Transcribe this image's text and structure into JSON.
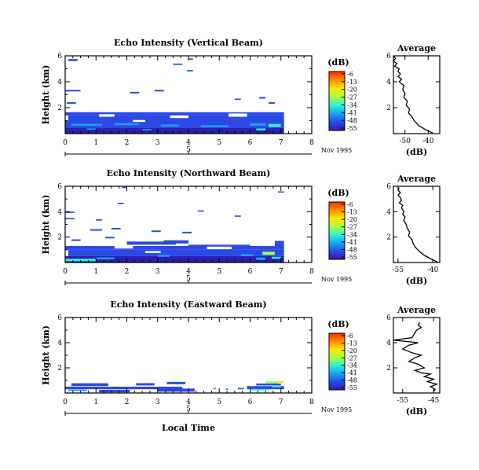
{
  "figure": {
    "date_label": "Nov 1995",
    "xlabel": "Local Time",
    "colorbar_title": "(dB)",
    "colorbar_ticks": [
      "-6",
      "-13",
      "-20",
      "-27",
      "-34",
      "-41",
      "-48",
      "-55"
    ],
    "colorbar_colors": [
      "#ff2a00",
      "#ff8c00",
      "#ffe600",
      "#a8ff3c",
      "#2ef2d0",
      "#13a6f2",
      "#2b49e6",
      "#2a1fb0"
    ]
  },
  "chart_data": [
    {
      "type": "heatmap",
      "title": "Echo Intensity (Vertical Beam)",
      "ylabel": "Height (km)",
      "xlim": [
        0,
        8
      ],
      "ylim": [
        0,
        6
      ],
      "xticks": [
        "0",
        "1",
        "2",
        "3",
        "4",
        "5",
        "6",
        "7",
        "8"
      ],
      "yticks": [
        "2",
        "4",
        "6"
      ],
      "date_marker": "5",
      "cells": [
        [
          0.1,
          5.6,
          0.3,
          0.15,
          "#2b49e6"
        ],
        [
          3.5,
          5.3,
          0.3,
          0.1,
          "#2b49e6"
        ],
        [
          3.95,
          4.8,
          0.2,
          0.1,
          "#2b49e6"
        ],
        [
          4.0,
          5.7,
          0.15,
          0.1,
          "#2b49e6"
        ],
        [
          0.0,
          3.25,
          0.5,
          0.12,
          "#2b49e6"
        ],
        [
          0.05,
          2.3,
          0.3,
          0.12,
          "#2b49e6"
        ],
        [
          2.1,
          3.1,
          0.3,
          0.12,
          "#2b49e6"
        ],
        [
          2.9,
          3.25,
          0.3,
          0.12,
          "#2b49e6"
        ],
        [
          6.3,
          2.7,
          0.2,
          0.12,
          "#2b49e6"
        ],
        [
          6.6,
          2.3,
          0.2,
          0.12,
          "#2b49e6"
        ],
        [
          5.5,
          2.6,
          0.2,
          0.1,
          "#2b49e6"
        ],
        [
          0.0,
          1.4,
          7.1,
          0.25,
          "#2b49e6"
        ],
        [
          0.1,
          1.0,
          7.0,
          0.4,
          "#2b49e6"
        ],
        [
          0.0,
          0.45,
          7.1,
          0.55,
          "#2b49e6"
        ],
        [
          0.0,
          0.0,
          7.1,
          0.45,
          "#2a1fb0"
        ],
        [
          0.2,
          0.6,
          1.0,
          0.15,
          "#13a6f2"
        ],
        [
          1.6,
          0.65,
          0.8,
          0.15,
          "#13a6f2"
        ],
        [
          3.1,
          0.55,
          0.6,
          0.15,
          "#13a6f2"
        ],
        [
          4.4,
          0.5,
          0.9,
          0.15,
          "#13a6f2"
        ],
        [
          6.0,
          0.6,
          0.5,
          0.2,
          "#13a6f2"
        ],
        [
          6.6,
          0.5,
          0.4,
          0.25,
          "#2ef2d0"
        ],
        [
          6.2,
          0.25,
          0.3,
          0.15,
          "#2ef2d0"
        ],
        [
          0.7,
          0.3,
          0.3,
          0.1,
          "#13a6f2"
        ],
        [
          2.5,
          0.25,
          0.3,
          0.1,
          "#13a6f2"
        ],
        [
          1.1,
          1.3,
          0.5,
          0.2,
          "#ffffff"
        ],
        [
          3.4,
          1.2,
          0.6,
          0.2,
          "#ffffff"
        ],
        [
          5.3,
          1.3,
          0.6,
          0.25,
          "#ffffff"
        ],
        [
          2.2,
          0.9,
          0.4,
          0.15,
          "#ffffff"
        ]
      ],
      "average": {
        "title": "Average",
        "xlabel": "(dB)",
        "xlim": [
          -55,
          -35
        ],
        "xticks": [
          -50,
          -40
        ],
        "ylim": [
          0,
          6
        ],
        "yticks": [
          2,
          4,
          6
        ],
        "x": [
          -55,
          -54,
          -55,
          -53.5,
          -54.5,
          -52.5,
          -53,
          -52,
          -53,
          -51.5,
          -52.5,
          -50.5,
          -51,
          -50,
          -50.5,
          -49,
          -49.5,
          -48,
          -48.5,
          -47,
          -46,
          -45,
          -44,
          -42,
          -40,
          -38
        ],
        "y": [
          6,
          5.8,
          5.6,
          5.4,
          5.2,
          5.0,
          4.8,
          4.6,
          4.4,
          4.2,
          4.0,
          3.7,
          3.4,
          3.1,
          2.8,
          2.5,
          2.2,
          1.9,
          1.6,
          1.3,
          1.0,
          0.8,
          0.6,
          0.4,
          0.2,
          0.05
        ]
      }
    },
    {
      "type": "heatmap",
      "title": "Echo Intensity (Northward Beam)",
      "ylabel": "Height (km)",
      "xlim": [
        0,
        8
      ],
      "ylim": [
        0,
        6
      ],
      "xticks": [
        "0",
        "1",
        "2",
        "3",
        "4",
        "5",
        "6",
        "7",
        "8"
      ],
      "yticks": [
        "2",
        "4",
        "6"
      ],
      "date_marker": "5",
      "cells": [
        [
          1.85,
          5.85,
          0.15,
          0.1,
          "#2b49e6"
        ],
        [
          6.9,
          5.5,
          0.2,
          0.1,
          "#2b49e6"
        ],
        [
          1.7,
          4.6,
          0.2,
          0.1,
          "#2b49e6"
        ],
        [
          0.0,
          3.9,
          0.3,
          0.1,
          "#2b49e6"
        ],
        [
          4.3,
          4.0,
          0.2,
          0.1,
          "#2b49e6"
        ],
        [
          5.5,
          3.6,
          0.2,
          0.1,
          "#2b49e6"
        ],
        [
          0.0,
          3.4,
          0.3,
          0.1,
          "#2b49e6"
        ],
        [
          1.0,
          3.3,
          0.2,
          0.1,
          "#2b49e6"
        ],
        [
          0.8,
          2.5,
          0.4,
          0.12,
          "#2b49e6"
        ],
        [
          1.5,
          2.6,
          0.3,
          0.12,
          "#2b49e6"
        ],
        [
          2.8,
          2.4,
          0.3,
          0.12,
          "#2b49e6"
        ],
        [
          3.8,
          2.3,
          0.3,
          0.12,
          "#2b49e6"
        ],
        [
          0.2,
          1.7,
          0.3,
          0.12,
          "#2b49e6"
        ],
        [
          1.3,
          1.9,
          0.3,
          0.12,
          "#2b49e6"
        ],
        [
          2.0,
          1.4,
          1.6,
          0.25,
          "#2b49e6"
        ],
        [
          3.2,
          1.5,
          0.8,
          0.25,
          "#2b49e6"
        ],
        [
          6.8,
          1.3,
          0.3,
          0.4,
          "#2b49e6"
        ],
        [
          4.0,
          1.2,
          2.0,
          0.2,
          "#2b49e6"
        ],
        [
          0.0,
          1.0,
          7.1,
          0.3,
          "#2b49e6"
        ],
        [
          0.1,
          0.5,
          7.0,
          0.5,
          "#2b49e6"
        ],
        [
          0.0,
          0.0,
          7.1,
          0.5,
          "#2a1fb0"
        ],
        [
          0.0,
          0.1,
          1.0,
          0.2,
          "#2ef2d0"
        ],
        [
          1.0,
          0.25,
          0.6,
          0.15,
          "#13a6f2"
        ],
        [
          3.0,
          0.45,
          0.4,
          0.15,
          "#13a6f2"
        ],
        [
          6.4,
          0.6,
          0.4,
          0.25,
          "#a8ff3c"
        ],
        [
          6.2,
          0.2,
          0.3,
          0.2,
          "#13a6f2"
        ],
        [
          6.7,
          0.3,
          0.3,
          0.15,
          "#2ef2d0"
        ],
        [
          5.7,
          0.5,
          0.4,
          0.15,
          "#13a6f2"
        ],
        [
          1.6,
          1.1,
          0.6,
          0.2,
          "#ffffff"
        ],
        [
          4.6,
          1.05,
          0.8,
          0.2,
          "#ffffff"
        ],
        [
          2.6,
          0.75,
          0.5,
          0.15,
          "#ffffff"
        ]
      ],
      "average": {
        "title": "Average",
        "xlabel": "(dB)",
        "xlim": [
          -57,
          -37
        ],
        "xticks": [
          -55,
          -40
        ],
        "ylim": [
          0,
          6
        ],
        "yticks": [
          2,
          4,
          6
        ],
        "x": [
          -54.5,
          -55,
          -54,
          -55,
          -54,
          -53.5,
          -54.5,
          -53,
          -53.5,
          -52.5,
          -53,
          -52,
          -52.5,
          -51.5,
          -51,
          -50,
          -50.5,
          -49,
          -48.5,
          -47.5,
          -46,
          -44,
          -42,
          -40,
          -38
        ],
        "y": [
          5.9,
          5.7,
          5.5,
          5.3,
          5.1,
          4.9,
          4.7,
          4.5,
          4.3,
          4.0,
          3.8,
          3.6,
          3.3,
          3.0,
          2.7,
          2.4,
          2.1,
          1.8,
          1.5,
          1.2,
          0.9,
          0.6,
          0.4,
          0.2,
          0.05
        ]
      }
    },
    {
      "type": "heatmap",
      "title": "Echo Intensity (Eastward Beam)",
      "ylabel": "Height (km)",
      "xlim": [
        0,
        8
      ],
      "ylim": [
        0,
        6
      ],
      "xticks": [
        "0",
        "1",
        "2",
        "3",
        "4",
        "5",
        "6",
        "7",
        "8"
      ],
      "yticks": [
        "2",
        "4",
        "6"
      ],
      "date_marker": "5",
      "cells": [
        [
          0.2,
          0.55,
          1.2,
          0.22,
          "#2b49e6"
        ],
        [
          2.3,
          0.6,
          0.6,
          0.18,
          "#2b49e6"
        ],
        [
          3.3,
          0.7,
          0.6,
          0.18,
          "#2b49e6"
        ],
        [
          0.0,
          0.3,
          3.8,
          0.2,
          "#2b49e6"
        ],
        [
          1.1,
          0.05,
          1.0,
          0.2,
          "#2b49e6"
        ],
        [
          3.0,
          0.1,
          1.2,
          0.25,
          "#2b49e6"
        ],
        [
          0.1,
          0.15,
          0.6,
          0.12,
          "#13a6f2"
        ],
        [
          4.8,
          0.3,
          0.1,
          0.1,
          "#13a6f2"
        ],
        [
          5.2,
          0.25,
          0.1,
          0.1,
          "#13a6f2"
        ],
        [
          5.6,
          0.3,
          0.2,
          0.1,
          "#2b49e6"
        ],
        [
          5.9,
          0.3,
          1.2,
          0.25,
          "#2b49e6"
        ],
        [
          6.2,
          0.6,
          0.8,
          0.15,
          "#2b49e6"
        ],
        [
          6.5,
          0.75,
          0.4,
          0.18,
          "#a8ff3c"
        ],
        [
          6.9,
          0.8,
          0.2,
          0.15,
          "#ffe600"
        ],
        [
          6.0,
          0.2,
          0.6,
          0.12,
          "#2ef2d0"
        ],
        [
          6.7,
          0.45,
          0.3,
          0.12,
          "#2ef2d0"
        ]
      ],
      "average": {
        "title": "Average",
        "xlabel": "(dB)",
        "xlim": [
          -58,
          -43
        ],
        "xticks": [
          -55,
          -45
        ],
        "ylim": [
          0,
          6
        ],
        "yticks": [
          2,
          4,
          6
        ],
        "x": [
          -49.5,
          -50,
          -49,
          -50.5,
          -52,
          -58,
          -54,
          -50,
          -53,
          -55,
          -52,
          -49,
          -51,
          -53,
          -50,
          -48,
          -51,
          -49,
          -46,
          -48,
          -45,
          -47,
          -44,
          -46,
          -44.5,
          -45
        ],
        "y": [
          5.6,
          5.4,
          5.2,
          5.0,
          4.4,
          4.2,
          4.1,
          4.0,
          3.8,
          3.5,
          3.2,
          3.0,
          2.8,
          2.5,
          2.3,
          2.0,
          1.8,
          1.6,
          1.5,
          1.3,
          1.1,
          0.9,
          0.7,
          0.5,
          0.3,
          0.1
        ]
      }
    }
  ]
}
